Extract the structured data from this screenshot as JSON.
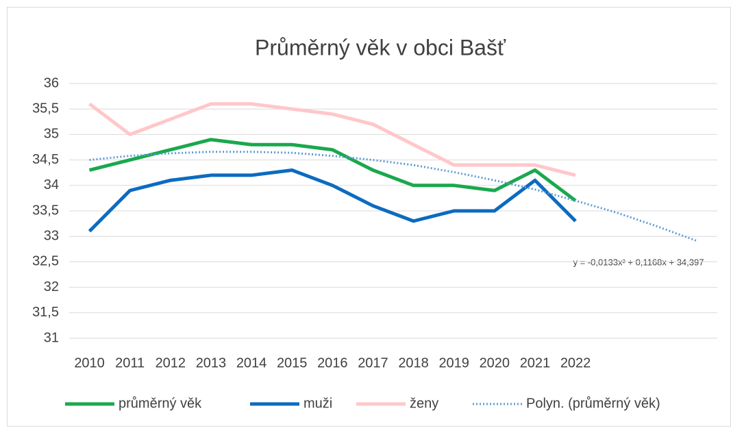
{
  "chart_data": {
    "type": "line",
    "title": "Průměrný věk v obci Bašť",
    "categories": [
      "2010",
      "2011",
      "2012",
      "2013",
      "2014",
      "2015",
      "2016",
      "2017",
      "2018",
      "2019",
      "2020",
      "2021",
      "2022",
      null,
      null,
      null
    ],
    "series": [
      {
        "name": "průměrný věk",
        "color": "#1aa84d",
        "line_style": "solid",
        "values": [
          34.3,
          34.5,
          34.7,
          34.9,
          34.8,
          34.8,
          34.7,
          34.3,
          34.0,
          34.0,
          33.9,
          34.3,
          33.7,
          null,
          null,
          null
        ]
      },
      {
        "name": "muži",
        "color": "#0c6bbf",
        "line_style": "solid",
        "values": [
          33.1,
          33.9,
          34.1,
          34.2,
          34.2,
          34.3,
          34.0,
          33.6,
          33.3,
          33.5,
          33.5,
          34.1,
          33.3,
          null,
          null,
          null
        ]
      },
      {
        "name": "ženy",
        "color": "#ffc7c9",
        "line_style": "solid",
        "values": [
          35.6,
          35.0,
          35.3,
          35.6,
          35.6,
          35.5,
          35.4,
          35.2,
          34.8,
          34.4,
          34.4,
          34.4,
          34.2,
          null,
          null,
          null
        ]
      },
      {
        "name": "Polyn. (průměrný věk)",
        "color": "#5b9bd5",
        "line_style": "dotted",
        "values": [
          34.5,
          34.58,
          34.63,
          34.66,
          34.66,
          34.64,
          34.58,
          34.5,
          34.4,
          34.26,
          34.1,
          33.92,
          33.7,
          33.47,
          33.2,
          32.91
        ]
      }
    ],
    "annotation": "y = -0,0133x² + 0,1168x + 34,397",
    "ylim": [
      31,
      36
    ],
    "yticks": [
      31,
      {
        "value": 31.5,
        "label": "31,5"
      },
      32,
      {
        "value": 32.5,
        "label": "32,5"
      },
      33,
      {
        "value": 33.5,
        "label": "33,5"
      },
      34,
      {
        "value": 34.5,
        "label": "34,5"
      },
      35,
      {
        "value": 35.5,
        "label": "35,5"
      },
      36
    ],
    "grid": true,
    "legend": "bottom"
  }
}
